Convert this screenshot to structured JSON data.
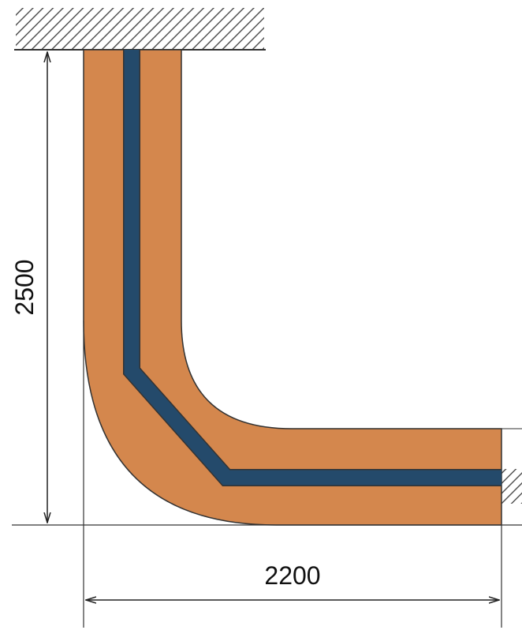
{
  "dimensions": {
    "height_label": "2500",
    "width_label": "2200"
  },
  "colors": {
    "insulation": "#d4874d",
    "core": "#244a6b",
    "outline": "#333333",
    "hatch": "#555555",
    "dimension_line": "#222222"
  }
}
